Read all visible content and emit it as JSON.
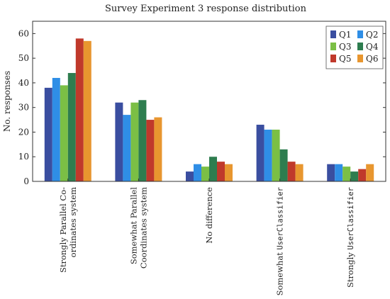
{
  "chart_data": {
    "type": "bar",
    "title": "Survey Experiment 3 response distribution",
    "xlabel": "",
    "ylabel": "No. responses",
    "ylim": [
      0,
      65
    ],
    "yticks": [
      0,
      10,
      20,
      30,
      40,
      50,
      60
    ],
    "grid": false,
    "legend_position": "top-right",
    "categories": [
      {
        "lines": [
          {
            "parts": [
              {
                "text": "Strongly Parallel Co-",
                "mono": false
              }
            ]
          },
          {
            "parts": [
              {
                "text": "ordinates system",
                "mono": false
              }
            ]
          }
        ]
      },
      {
        "lines": [
          {
            "parts": [
              {
                "text": "Somewhat Parallel",
                "mono": false
              }
            ]
          },
          {
            "parts": [
              {
                "text": "Coordinates system",
                "mono": false
              }
            ]
          }
        ]
      },
      {
        "lines": [
          {
            "parts": [
              {
                "text": "No difference",
                "mono": false
              }
            ]
          }
        ]
      },
      {
        "lines": [
          {
            "parts": [
              {
                "text": "Somewhat ",
                "mono": false
              },
              {
                "text": "UserClassifier",
                "mono": true
              }
            ]
          }
        ]
      },
      {
        "lines": [
          {
            "parts": [
              {
                "text": "Strongly ",
                "mono": false
              },
              {
                "text": "UserClassifier",
                "mono": true
              }
            ]
          }
        ]
      }
    ],
    "series": [
      {
        "name": "Q1",
        "color": "#3a4ea0",
        "values": [
          38,
          32,
          4,
          23,
          7
        ]
      },
      {
        "name": "Q2",
        "color": "#2f8ee6",
        "values": [
          42,
          27,
          7,
          21,
          7
        ]
      },
      {
        "name": "Q3",
        "color": "#7bbf45",
        "values": [
          39,
          32,
          6,
          21,
          6
        ]
      },
      {
        "name": "Q4",
        "color": "#2e7d4f",
        "values": [
          44,
          33,
          10,
          13,
          4
        ]
      },
      {
        "name": "Q5",
        "color": "#c0392b",
        "values": [
          58,
          25,
          8,
          8,
          5
        ]
      },
      {
        "name": "Q6",
        "color": "#e8962f",
        "values": [
          57,
          26,
          7,
          7,
          7
        ]
      }
    ]
  }
}
